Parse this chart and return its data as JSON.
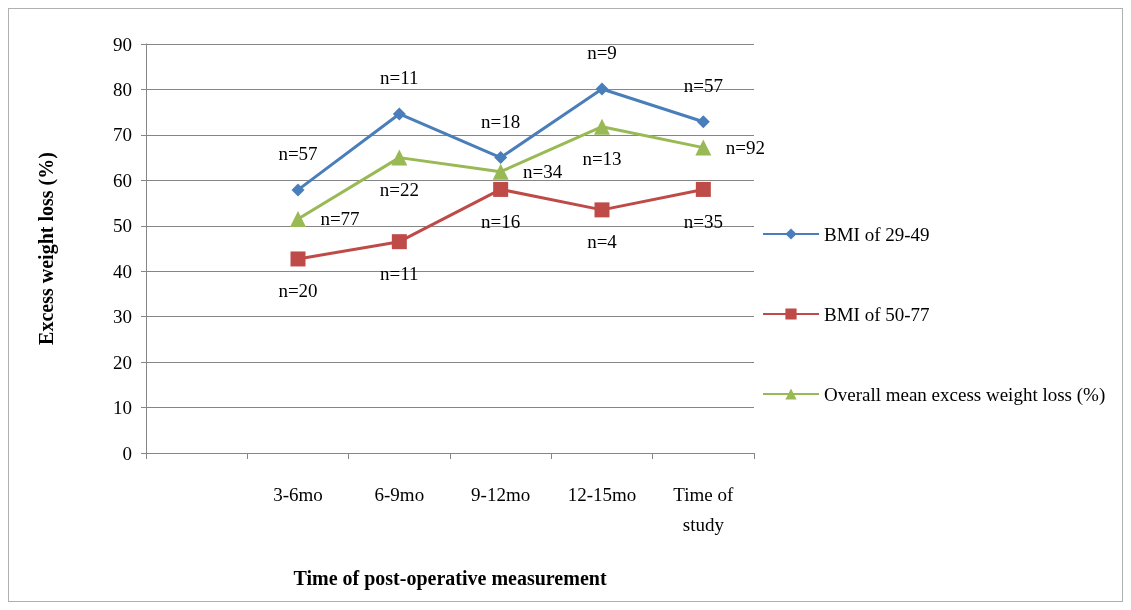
{
  "chart_data": {
    "type": "line",
    "xlabel": "Time of post-operative measurement",
    "ylabel": "Excess weight loss (%)",
    "categories": [
      null,
      "3-6mo",
      "6-9mo",
      "9-12mo",
      "12-15mo",
      "Time of\nstudy"
    ],
    "annotations": [
      {
        "text": "n=57",
        "x": "3-6mo",
        "y": 57.9
      },
      {
        "text": "n=11",
        "x": "6-9mo",
        "y": 74.6
      },
      {
        "text": "n=18",
        "x": "9-12mo",
        "y": 65
      },
      {
        "text": "n=9",
        "x": "12-15mo",
        "y": 80.1
      },
      {
        "text": "n=57",
        "x": "Time of\nstudy",
        "y": 72.9
      },
      {
        "text": "n=20",
        "x": "3-6mo",
        "y": 42.7
      },
      {
        "text": "n=11",
        "x": "6-9mo",
        "y": 46.5
      },
      {
        "text": "n=16",
        "x": "9-12mo",
        "y": 58
      },
      {
        "text": "n=4",
        "x": "12-15mo",
        "y": 53.5
      },
      {
        "text": "n=35",
        "x": "Time of\nstudy",
        "y": 58
      },
      {
        "text": "n=77",
        "x": "3-6mo",
        "y": 51.5
      },
      {
        "text": "n=22",
        "x": "6-9mo",
        "y": 65
      },
      {
        "text": "n=34",
        "x": "9-12mo",
        "y": 61.9
      },
      {
        "text": "n=13",
        "x": "12-15mo",
        "y": 71.8
      },
      {
        "text": "n=92",
        "x": "Time of\nstudy",
        "y": 67.2
      }
    ],
    "ylim": [
      0,
      90
    ],
    "yticks": [
      0,
      10,
      20,
      30,
      40,
      50,
      60,
      70,
      80,
      90
    ],
    "grid": "y",
    "legend": "right",
    "series": [
      {
        "name": "BMI of 29-49",
        "color": "#4a7ebb",
        "marker": "diamond",
        "values": [
          null,
          57.9,
          74.6,
          65,
          80.1,
          72.9
        ]
      },
      {
        "name": "BMI of 50-77",
        "color": "#be4b48",
        "marker": "square",
        "values": [
          null,
          42.7,
          46.5,
          58,
          53.5,
          58
        ]
      },
      {
        "name": "Overall mean excess weight loss (%)",
        "color": "#98b954",
        "marker": "triangle",
        "values": [
          null,
          51.5,
          65,
          61.9,
          71.8,
          67.2
        ]
      }
    ]
  }
}
